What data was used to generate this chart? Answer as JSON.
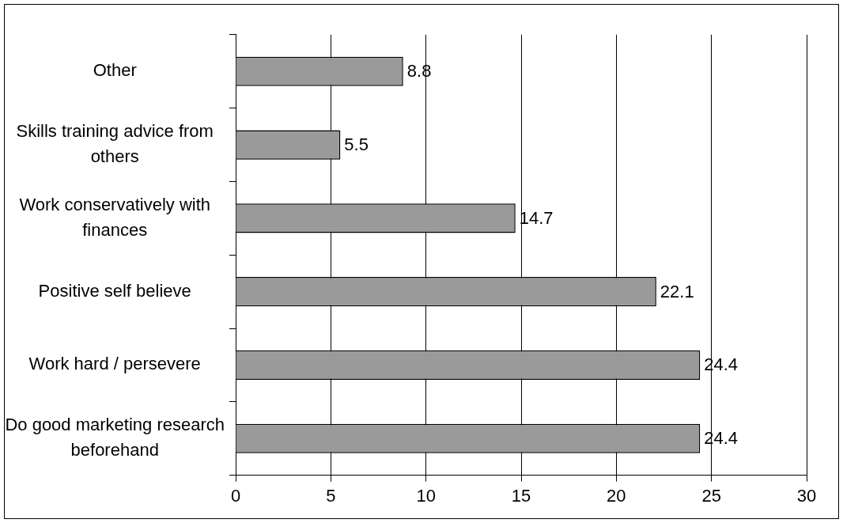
{
  "chart_data": {
    "type": "bar",
    "orientation": "horizontal",
    "categories": [
      "Other",
      "Skills training advice from others",
      "Work conservatively with finances",
      "Positive self believe",
      "Work hard / persevere",
      "Do good marketing research beforehand"
    ],
    "values": [
      8.8,
      5.5,
      14.7,
      22.1,
      24.4,
      24.4
    ],
    "color": "#9a9a9a",
    "xlim": [
      0,
      30
    ],
    "xticks": [
      0,
      5,
      10,
      15,
      20,
      25,
      30
    ],
    "grid": "x",
    "legend": false,
    "data_labels": true
  }
}
